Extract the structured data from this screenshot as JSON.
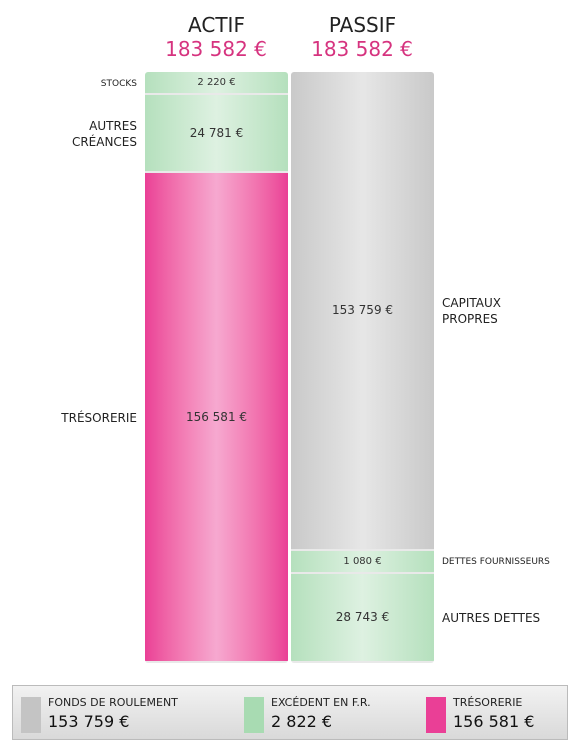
{
  "chart_data": {
    "type": "balance",
    "columns": [
      {
        "name": "ACTIF",
        "total": 183582,
        "total_label": "183 582 €",
        "label_side": "left",
        "segments": [
          {
            "name": "STOCKS",
            "value": 2220,
            "value_label": "2 220 €",
            "color": "#b5e0bd"
          },
          {
            "name": "AUTRES\nCRÉANCES",
            "value": 24781,
            "value_label": "24 781 €",
            "color": "#b5e0bd"
          },
          {
            "name": "TRÉSORERIE",
            "value": 156581,
            "value_label": "156 581 €",
            "color": "#ea3f96"
          }
        ]
      },
      {
        "name": "PASSIF",
        "total": 183582,
        "total_label": "183 582 €",
        "label_side": "right",
        "segments": [
          {
            "name": "CAPITAUX\nPROPRES",
            "value": 153759,
            "value_label": "153 759 €",
            "color": "#c9c9c9"
          },
          {
            "name": "DETTES FOURNISSEURS",
            "value": 1080,
            "value_label": "1 080 €",
            "color": "#b5e0bd"
          },
          {
            "name": "AUTRES DETTES",
            "value": 28743,
            "value_label": "28 743 €",
            "color": "#b5e0bd"
          }
        ]
      }
    ],
    "legend": [
      {
        "name": "FONDS DE ROULEMENT",
        "value": 153759,
        "value_label": "153 759 €",
        "color": "#c4c4c4"
      },
      {
        "name": "EXCÉDENT EN F.R.",
        "value": 2822,
        "value_label": "2 822 €",
        "color": "#a8dbb2"
      },
      {
        "name": "TRÉSORERIE",
        "value": 156581,
        "value_label": "156 581 €",
        "color": "#ea3f96"
      }
    ]
  }
}
